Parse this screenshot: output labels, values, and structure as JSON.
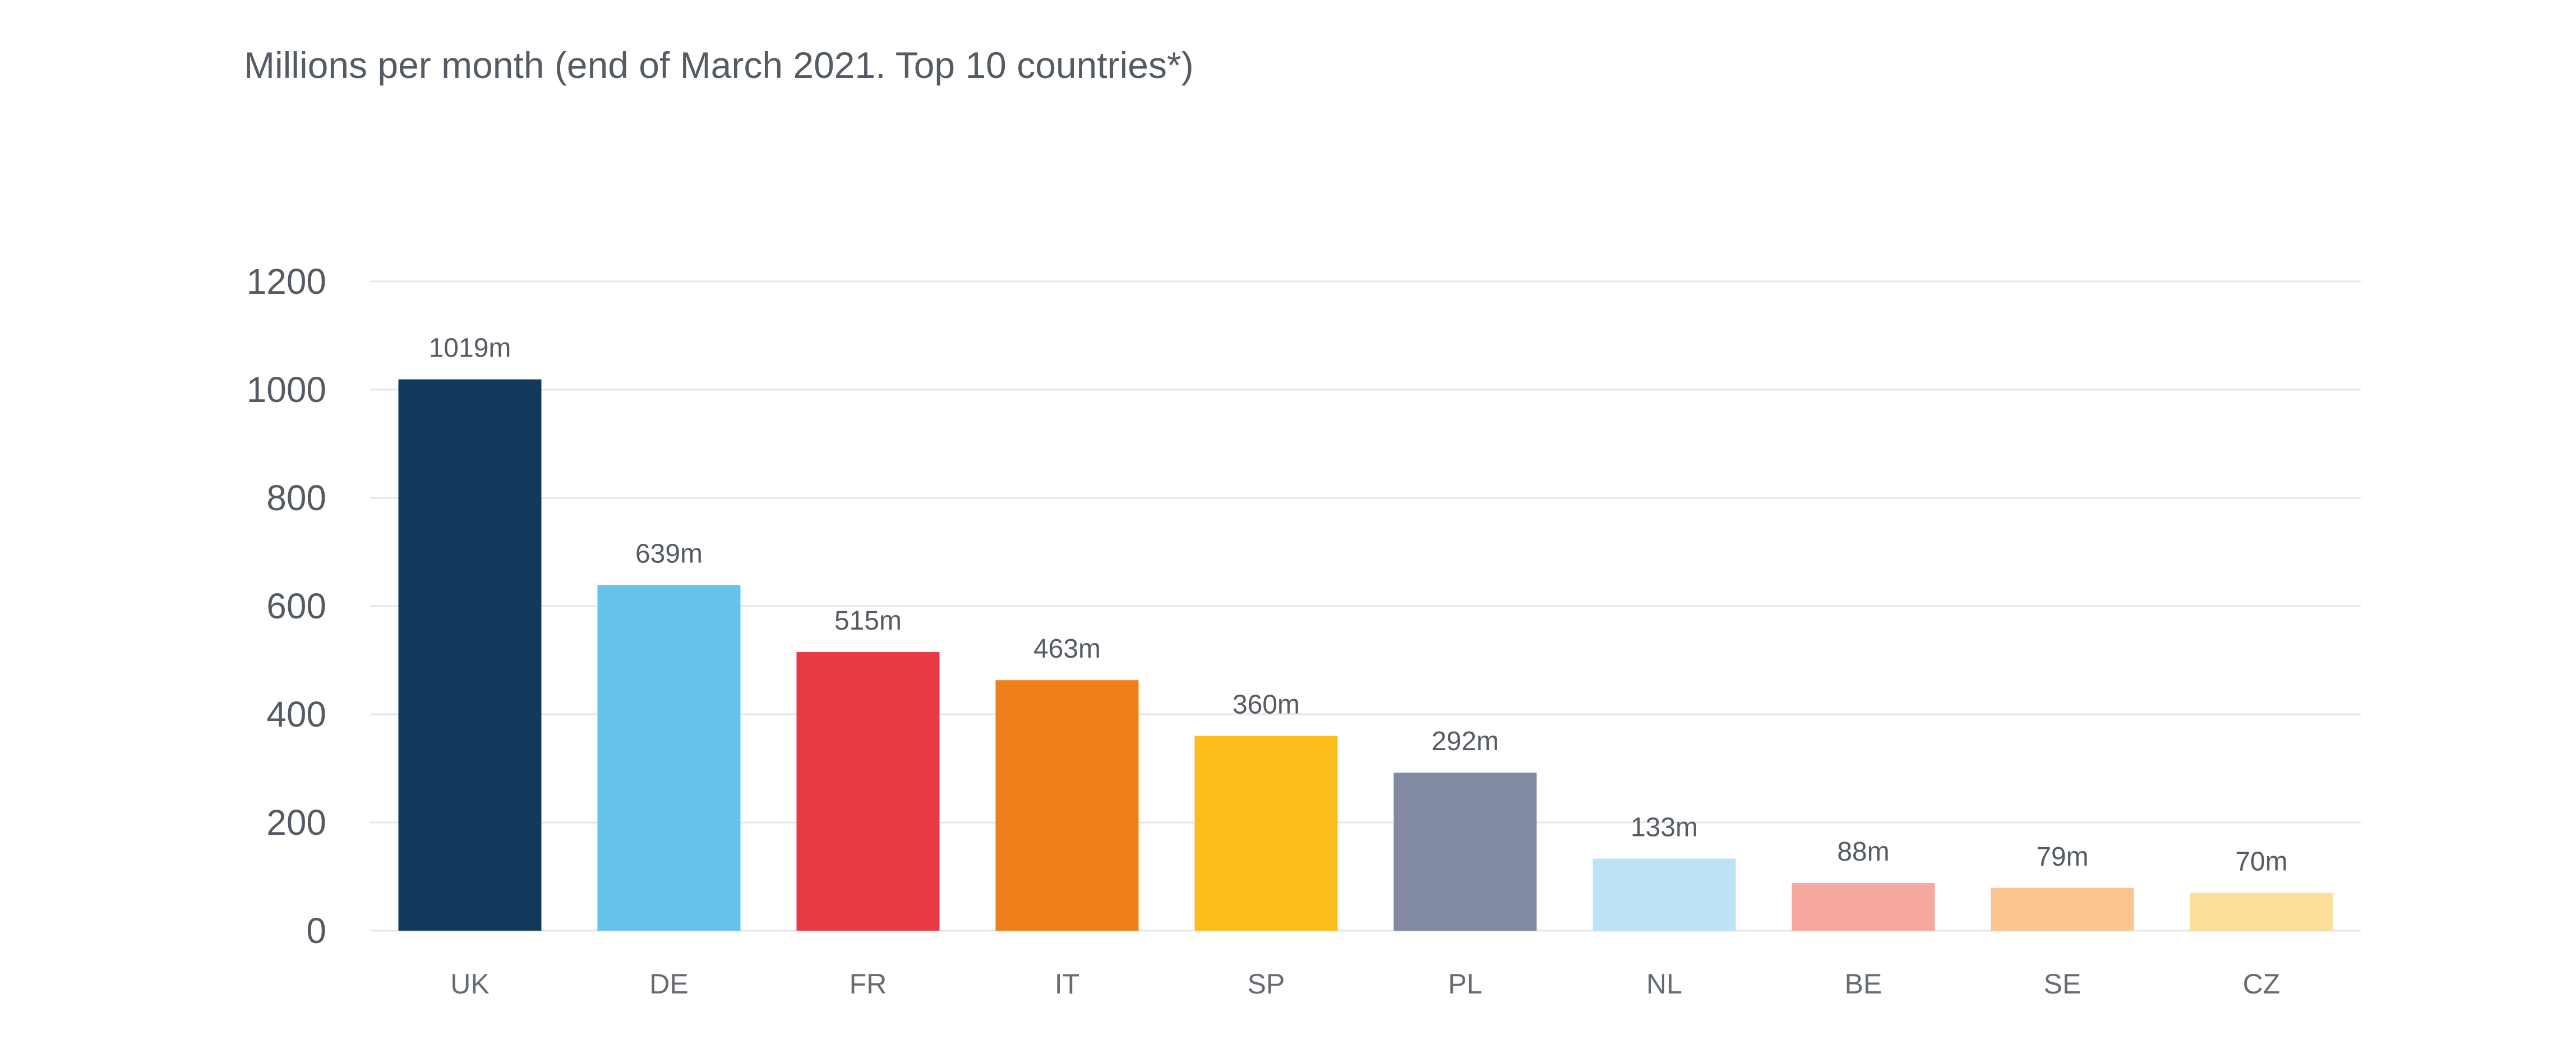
{
  "chart_data": {
    "type": "bar",
    "title": "Millions per month (end of March 2021. Top 10 countries*)",
    "xlabel": "",
    "ylabel": "",
    "categories": [
      "UK",
      "DE",
      "FR",
      "IT",
      "SP",
      "PL",
      "NL",
      "BE",
      "SE",
      "CZ"
    ],
    "values": [
      1019,
      639,
      515,
      463,
      360,
      292,
      133,
      88,
      79,
      70
    ],
    "data_labels": [
      "1019m",
      "639m",
      "515m",
      "463m",
      "360m",
      "292m",
      "133m",
      "88m",
      "79m",
      "70m"
    ],
    "bar_colors": [
      "#11395c",
      "#66c1eb",
      "#e83a45",
      "#ef7f18",
      "#fbbd1b",
      "#818aa2",
      "#bde2f5",
      "#f6a89d",
      "#fbc491",
      "#fdde99"
    ],
    "ylim": [
      0,
      1200
    ],
    "yticks": [
      0,
      200,
      400,
      600,
      800,
      1000,
      1200
    ],
    "grid": true,
    "legend": "none"
  }
}
